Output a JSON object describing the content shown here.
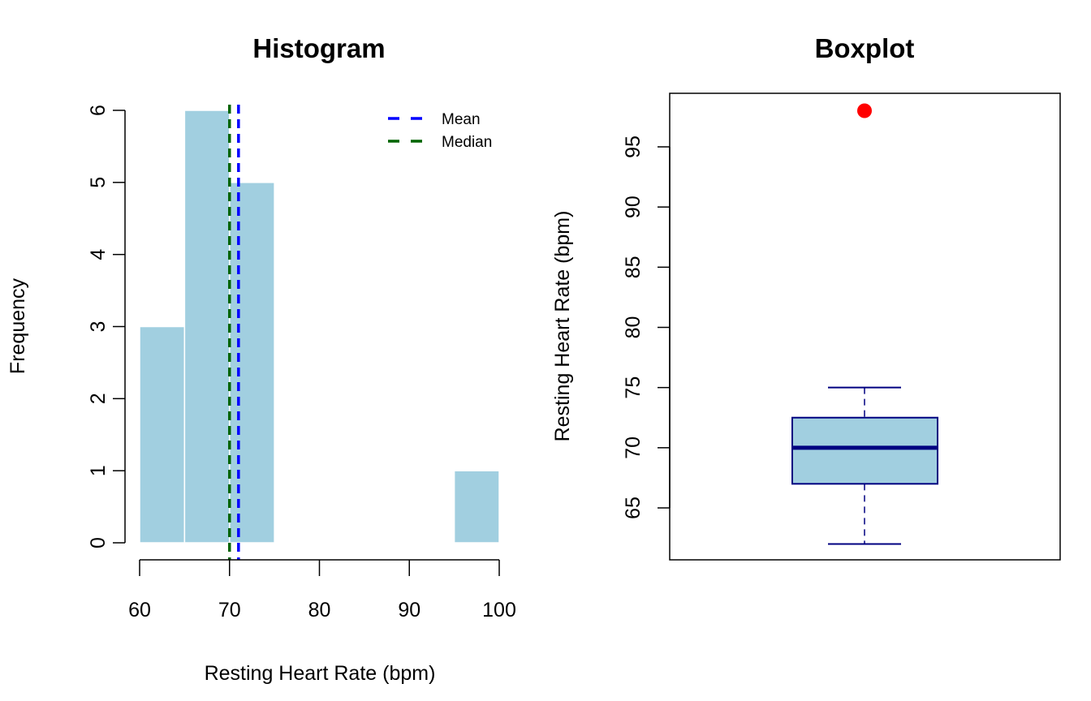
{
  "chart_data": [
    {
      "type": "bar",
      "subtype": "histogram",
      "title": "Histogram",
      "xlabel": "Resting Heart Rate (bpm)",
      "ylabel": "Frequency",
      "bins": [
        {
          "from": 60,
          "to": 65,
          "count": 3
        },
        {
          "from": 65,
          "to": 70,
          "count": 6
        },
        {
          "from": 70,
          "to": 75,
          "count": 5
        },
        {
          "from": 75,
          "to": 80,
          "count": 0
        },
        {
          "from": 80,
          "to": 85,
          "count": 0
        },
        {
          "from": 85,
          "to": 90,
          "count": 0
        },
        {
          "from": 90,
          "to": 95,
          "count": 0
        },
        {
          "from": 95,
          "to": 100,
          "count": 1
        }
      ],
      "xlim": [
        60,
        100
      ],
      "ylim": [
        0,
        6
      ],
      "x_ticks": [
        60,
        70,
        80,
        90,
        100
      ],
      "y_ticks": [
        0,
        1,
        2,
        3,
        4,
        5,
        6
      ],
      "bar_color": "#a1cfe0",
      "bar_border_color": "#ffffff",
      "reference_lines": [
        {
          "name": "Mean",
          "value": 71,
          "color": "#0000ff",
          "style": "dashed"
        },
        {
          "name": "Median",
          "value": 70,
          "color": "#006400",
          "style": "dashed"
        }
      ],
      "legend": {
        "position": "top-right",
        "entries": [
          {
            "label": "Mean",
            "color": "#0000ff"
          },
          {
            "label": "Median",
            "color": "#006400"
          }
        ]
      },
      "grid": false
    },
    {
      "type": "boxplot",
      "title": "Boxplot",
      "xlabel": "",
      "ylabel": "Resting Heart Rate (bpm)",
      "ylim": [
        61,
        99.5
      ],
      "y_ticks": [
        65,
        70,
        75,
        80,
        85,
        90,
        95
      ],
      "stats": {
        "lower_whisker": 62,
        "q1": 67,
        "median": 70,
        "q3": 72.5,
        "upper_whisker": 75,
        "outliers": [
          98
        ]
      },
      "box_fill": "#a1cfe0",
      "box_border": "#000080",
      "outlier_color": "#ff0000",
      "grid": false
    }
  ]
}
